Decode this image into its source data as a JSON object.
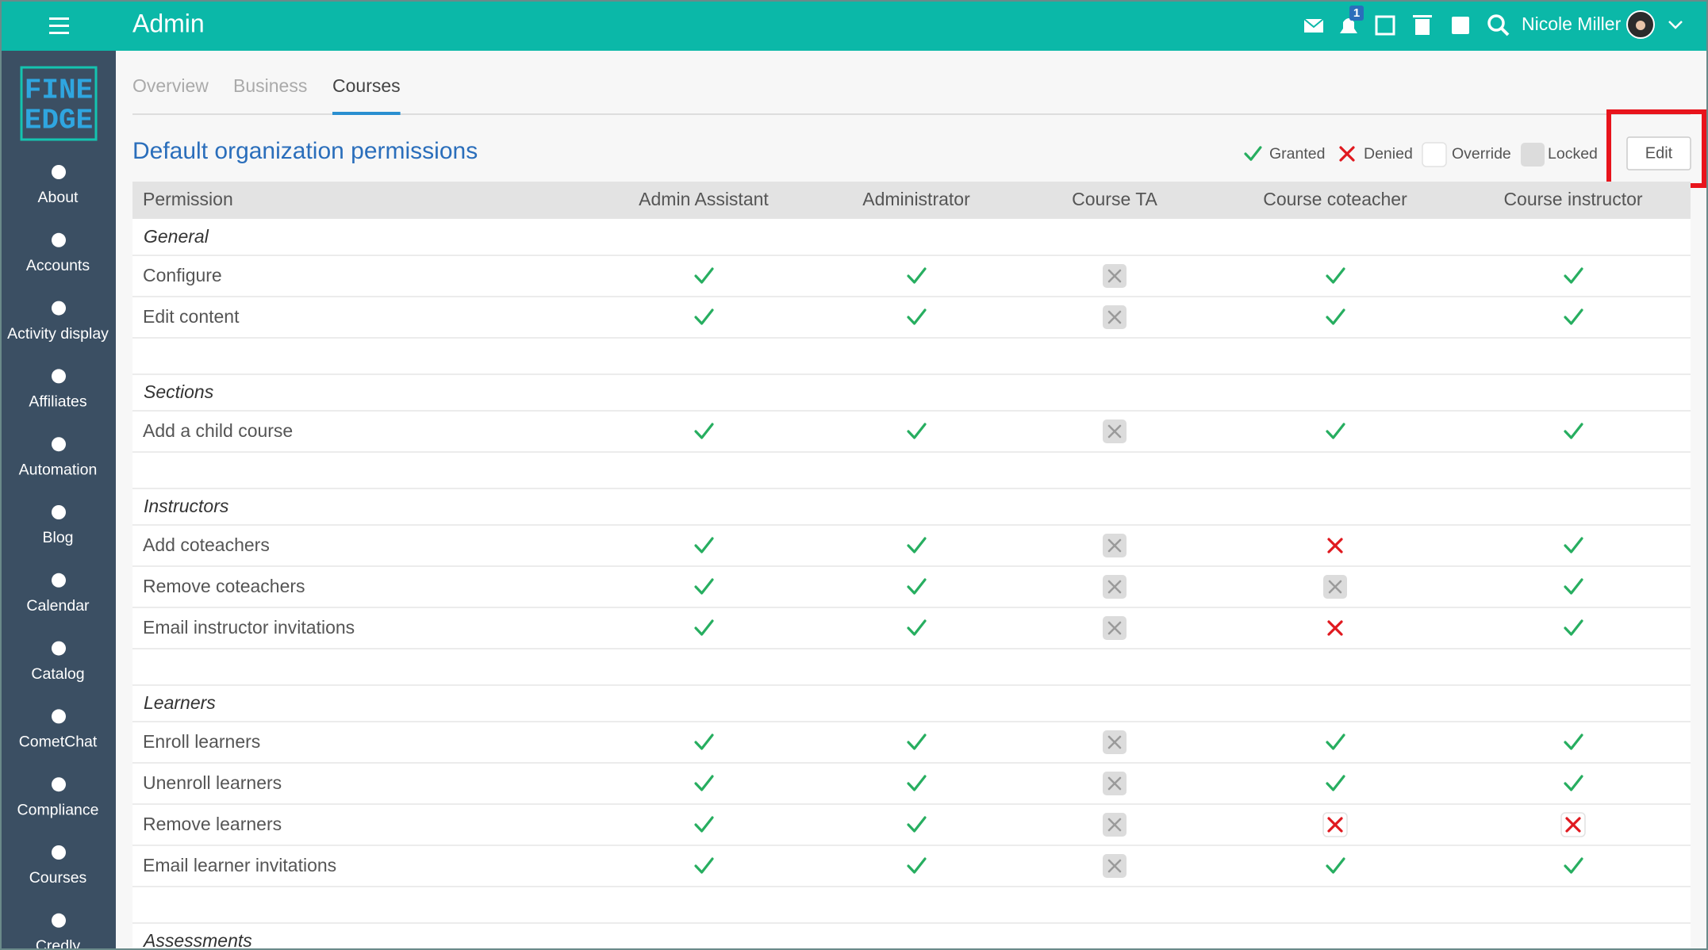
{
  "topbar": {
    "title": "Admin",
    "notification_count": 1,
    "user_name": "Nicole Miller"
  },
  "sidebar": {
    "logo": [
      "FINE",
      "EDGE"
    ],
    "items": [
      "About",
      "Accounts",
      "Activity display",
      "Affiliates",
      "Automation",
      "Blog",
      "Calendar",
      "Catalog",
      "CometChat",
      "Compliance",
      "Courses",
      "Credly"
    ]
  },
  "tabs": [
    "Overview",
    "Business",
    "Courses"
  ],
  "heading": "Default organization permissions",
  "legend": [
    "Granted",
    "Denied",
    "Override",
    "Locked"
  ],
  "edit_button": "Edit",
  "table": {
    "columns": [
      "Permission",
      "Admin Assistant",
      "Administrator",
      "Course TA",
      "Course coteacher",
      "Course instructor"
    ],
    "groups": [
      {
        "name": "General",
        "rows": [
          "Configure",
          "Edit content"
        ]
      },
      {
        "name": "Sections",
        "rows": [
          "Add a child course"
        ]
      },
      {
        "name": "Instructors",
        "rows": [
          "Add coteachers",
          "Remove coteachers",
          "Email instructor invitations"
        ]
      },
      {
        "name": "Learners",
        "rows": [
          "Enroll learners",
          "Unenroll learners",
          "Remove learners",
          "Email learner invitations"
        ]
      },
      {
        "name": "Assessments",
        "rows": []
      }
    ]
  }
}
